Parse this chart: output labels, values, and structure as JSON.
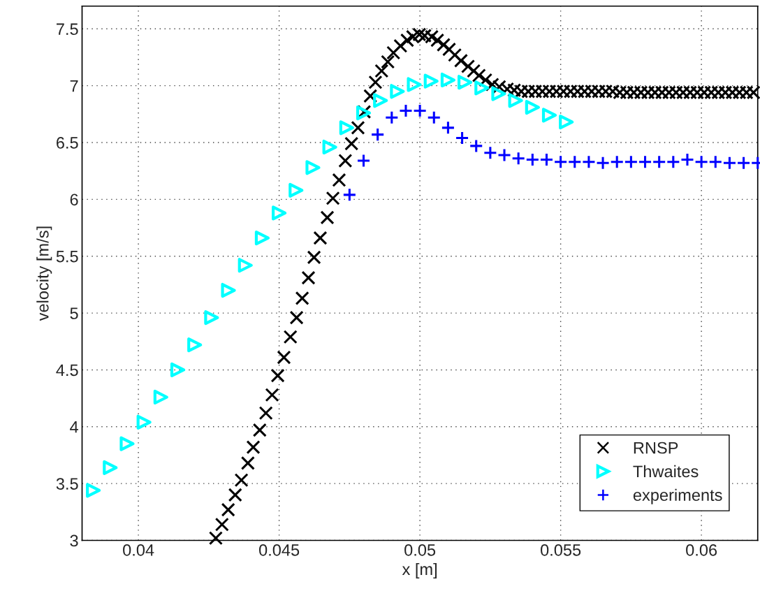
{
  "chart_data": {
    "type": "scatter",
    "xlabel": "x [m]",
    "ylabel": "velocity [m/s]",
    "xlim": [
      0.038,
      0.062
    ],
    "ylim": [
      3,
      7.7
    ],
    "xticks": [
      0.04,
      0.045,
      0.05,
      0.055,
      0.06
    ],
    "yticks": [
      3,
      3.5,
      4,
      4.5,
      5,
      5.5,
      6,
      6.5,
      7,
      7.5
    ],
    "grid": true,
    "legend": "bottom right",
    "series": [
      {
        "name": "RNSP",
        "color": "#000000",
        "marker": "cross",
        "x": [
          0.04275,
          0.04297,
          0.04319,
          0.04344,
          0.04366,
          0.04389,
          0.04408,
          0.04431,
          0.04453,
          0.04475,
          0.04495,
          0.04517,
          0.0454,
          0.04562,
          0.04582,
          0.04604,
          0.04624,
          0.04646,
          0.04671,
          0.04691,
          0.04713,
          0.04735,
          0.04757,
          0.0478,
          0.04802,
          0.04824,
          0.04842,
          0.04864,
          0.04886,
          0.04906,
          0.04931,
          0.04955,
          0.04975,
          0.04998,
          0.05017,
          0.05042,
          0.05062,
          0.05084,
          0.05104,
          0.05124,
          0.05146,
          0.05171,
          0.05191,
          0.0521,
          0.05233,
          0.05257,
          0.05282,
          0.0531,
          0.05335,
          0.0536,
          0.05385,
          0.0541,
          0.05435,
          0.0546,
          0.05485,
          0.0551,
          0.05535,
          0.0556,
          0.05585,
          0.0561,
          0.05635,
          0.0566,
          0.05685,
          0.0571,
          0.05735,
          0.0576,
          0.05785,
          0.0581,
          0.05835,
          0.0586,
          0.05885,
          0.0591,
          0.05935,
          0.0596,
          0.05985,
          0.0601,
          0.06035,
          0.0606,
          0.06085,
          0.0611,
          0.06135,
          0.0616,
          0.06185
        ],
        "values": [
          3.02,
          3.14,
          3.27,
          3.4,
          3.53,
          3.68,
          3.82,
          3.97,
          4.12,
          4.28,
          4.45,
          4.61,
          4.79,
          4.96,
          5.13,
          5.31,
          5.49,
          5.66,
          5.84,
          6.01,
          6.17,
          6.34,
          6.49,
          6.63,
          6.77,
          6.91,
          7.03,
          7.13,
          7.21,
          7.29,
          7.35,
          7.4,
          7.43,
          7.45,
          7.44,
          7.43,
          7.4,
          7.36,
          7.32,
          7.27,
          7.22,
          7.17,
          7.13,
          7.09,
          7.05,
          7.01,
          6.99,
          6.97,
          6.96,
          6.95,
          6.95,
          6.95,
          6.95,
          6.95,
          6.95,
          6.95,
          6.95,
          6.95,
          6.95,
          6.95,
          6.95,
          6.95,
          6.95,
          6.94,
          6.94,
          6.94,
          6.94,
          6.94,
          6.94,
          6.94,
          6.94,
          6.94,
          6.94,
          6.94,
          6.94,
          6.94,
          6.94,
          6.94,
          6.94,
          6.94,
          6.94,
          6.94,
          6.94
        ]
      },
      {
        "name": "Thwaites",
        "color": "#00ffff",
        "marker": "triangle",
        "x": [
          0.0384,
          0.039,
          0.0396,
          0.0402,
          0.0408,
          0.0414,
          0.042,
          0.0426,
          0.0432,
          0.0438,
          0.0444,
          0.045,
          0.0456,
          0.0462,
          0.0468,
          0.0474,
          0.048,
          0.0486,
          0.0492,
          0.0498,
          0.0504,
          0.051,
          0.0516,
          0.0522,
          0.0528,
          0.0534,
          0.054,
          0.0546,
          0.0552
        ],
        "values": [
          3.44,
          3.64,
          3.85,
          4.04,
          4.26,
          4.5,
          4.72,
          4.96,
          5.2,
          5.42,
          5.66,
          5.88,
          6.08,
          6.28,
          6.46,
          6.63,
          6.76,
          6.87,
          6.95,
          7.01,
          7.04,
          7.05,
          7.03,
          6.98,
          6.93,
          6.87,
          6.81,
          6.74,
          6.68
        ]
      },
      {
        "name": "experiments",
        "color": "#0000ff",
        "marker": "plus",
        "x": [
          0.0475,
          0.048,
          0.0485,
          0.049,
          0.0495,
          0.05,
          0.0505,
          0.051,
          0.0515,
          0.052,
          0.0525,
          0.053,
          0.0535,
          0.054,
          0.0545,
          0.055,
          0.0555,
          0.056,
          0.0565,
          0.057,
          0.0575,
          0.058,
          0.0585,
          0.059,
          0.0595,
          0.06,
          0.0605,
          0.061,
          0.0615,
          0.062
        ],
        "values": [
          6.04,
          6.34,
          6.57,
          6.72,
          6.78,
          6.78,
          6.72,
          6.63,
          6.54,
          6.47,
          6.41,
          6.39,
          6.36,
          6.35,
          6.35,
          6.33,
          6.33,
          6.33,
          6.32,
          6.33,
          6.33,
          6.33,
          6.33,
          6.33,
          6.35,
          6.33,
          6.33,
          6.32,
          6.32,
          6.32
        ]
      }
    ]
  }
}
